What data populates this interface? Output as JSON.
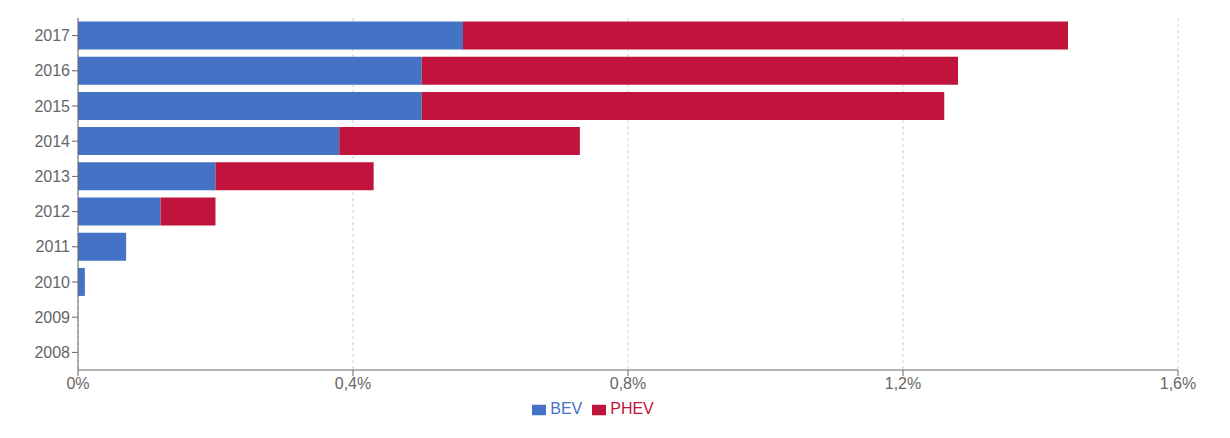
{
  "chart_data": {
    "type": "bar",
    "orientation": "horizontal",
    "stacked": true,
    "categories": [
      "2017",
      "2016",
      "2015",
      "2014",
      "2013",
      "2012",
      "2011",
      "2010",
      "2009",
      "2008"
    ],
    "series": [
      {
        "name": "BEV",
        "color": "#4472C4",
        "values": [
          0.0056,
          0.005,
          0.005,
          0.0038,
          0.002,
          0.0012,
          0.0007,
          0.0001,
          0.0,
          0.0
        ]
      },
      {
        "name": "PHEV",
        "color": "#C0143C",
        "values": [
          0.0088,
          0.0078,
          0.0076,
          0.0035,
          0.0023,
          0.0008,
          0.0,
          0.0,
          0.0,
          0.0
        ]
      }
    ],
    "xlim": [
      0,
      0.016
    ],
    "xticks": [
      {
        "value": 0,
        "label": "0%"
      },
      {
        "value": 0.004,
        "label": "0,4%"
      },
      {
        "value": 0.008,
        "label": "0,8%"
      },
      {
        "value": 0.012,
        "label": "1,2%"
      },
      {
        "value": 0.016,
        "label": "1,6%"
      }
    ],
    "grid": true,
    "legend": "bottom"
  }
}
